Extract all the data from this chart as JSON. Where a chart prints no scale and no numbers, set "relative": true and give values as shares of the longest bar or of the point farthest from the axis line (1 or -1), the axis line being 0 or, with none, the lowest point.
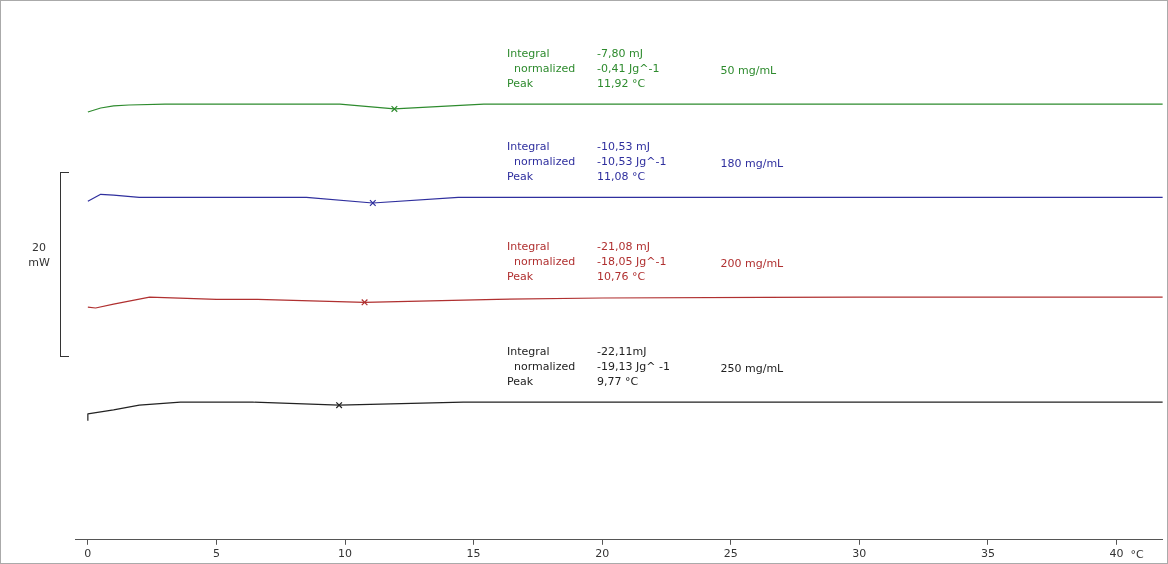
{
  "chart_data": {
    "type": "line",
    "relative": true,
    "xlabel": "°C",
    "xlim": [
      -0.5,
      41.8
    ],
    "xticks": [
      0,
      5,
      10,
      15,
      20,
      25,
      30,
      35,
      40
    ],
    "legend": false,
    "marker": "none",
    "line_style": "solid",
    "series": [
      {
        "name": "50 mg/mL",
        "color": "#2e8b2e",
        "x": [
          0,
          0.5,
          1,
          1.6,
          3,
          9.8,
          11.92,
          15.4,
          20,
          30,
          41.8
        ],
        "values": [
          0.982,
          0.991,
          0.996,
          0.998,
          1.0,
          1.0,
          0.989,
          1.0,
          1.0,
          1.0,
          1.0
        ]
      },
      {
        "name": "180 mg/mL",
        "color": "#2f2f9e",
        "x": [
          0,
          0.5,
          1,
          2,
          5,
          8.5,
          11.08,
          14.4,
          20,
          30,
          41.8
        ],
        "values": [
          0.777,
          0.793,
          0.791,
          0.786,
          0.786,
          0.786,
          0.773,
          0.786,
          0.786,
          0.786,
          0.786
        ]
      },
      {
        "name": "200 mg/mL",
        "color": "#b03030",
        "x": [
          0,
          0.3,
          1,
          2.4,
          5,
          6.6,
          10.76,
          15.9,
          20,
          30,
          41.8
        ],
        "values": [
          0.534,
          0.532,
          0.541,
          0.557,
          0.552,
          0.552,
          0.545,
          0.552,
          0.555,
          0.557,
          0.557
        ]
      },
      {
        "name": "250 mg/mL",
        "color": "#222222",
        "x": [
          0,
          0,
          1,
          2,
          3.6,
          6.4,
          9.77,
          14.6,
          20,
          30,
          41.8
        ],
        "values": [
          0.273,
          0.289,
          0.298,
          0.309,
          0.316,
          0.316,
          0.309,
          0.316,
          0.316,
          0.316,
          0.316
        ]
      },
      {
        "type": "scatter",
        "marker": "cross",
        "color": "#2e8b2e",
        "x": [
          11.92
        ],
        "values": [
          0.989
        ]
      },
      {
        "type": "scatter",
        "marker": "cross",
        "color": "#2f2f9e",
        "x": [
          11.08
        ],
        "values": [
          0.773
        ]
      },
      {
        "type": "scatter",
        "marker": "cross",
        "color": "#b03030",
        "x": [
          10.76
        ],
        "values": [
          0.545
        ]
      },
      {
        "type": "scatter",
        "marker": "cross",
        "color": "#222222",
        "x": [
          9.77
        ],
        "values": [
          0.309
        ]
      }
    ],
    "annotations": [
      "Integral\t-7,80 mJ\n  normalized\t-0,41 Jg^-1\nPeak\t11,92 °C",
      "Integral\t-10,53 mJ\n  normalized\t-10,53 Jg^-1\nPeak\t11,08 °C",
      "Integral\t-21,08 mJ\n  normalized\t-18,05 Jg^-1\nPeak\t10,76 °C",
      "Integral\t-22,11mJ\n  normalized\t-19,13 Jg^ -1\nPeak\t9,77 °C",
      "20 mW"
    ]
  }
}
